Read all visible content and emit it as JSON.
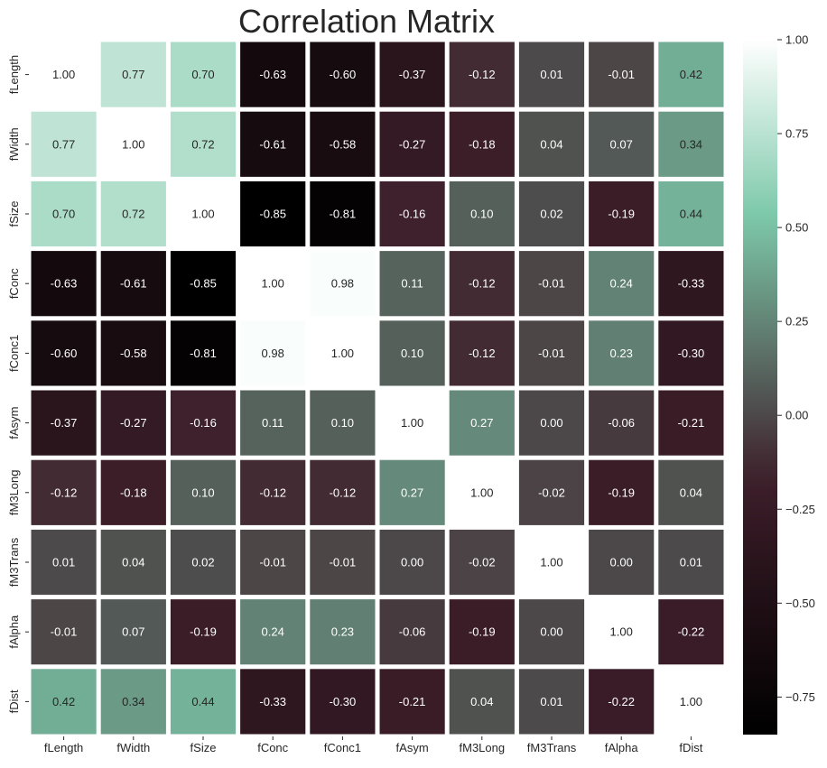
{
  "chart_data": {
    "type": "heatmap",
    "title": "Correlation Matrix",
    "xlabel": "",
    "ylabel": "",
    "labels": [
      "fLength",
      "fWidth",
      "fSize",
      "fConc",
      "fConc1",
      "fAsym",
      "fM3Long",
      "fM3Trans",
      "fAlpha",
      "fDist"
    ],
    "values": [
      [
        1.0,
        0.77,
        0.7,
        -0.63,
        -0.6,
        -0.37,
        -0.12,
        0.01,
        -0.01,
        0.42
      ],
      [
        0.77,
        1.0,
        0.72,
        -0.61,
        -0.58,
        -0.27,
        -0.18,
        0.04,
        0.07,
        0.34
      ],
      [
        0.7,
        0.72,
        1.0,
        -0.85,
        -0.81,
        -0.16,
        0.1,
        0.02,
        -0.19,
        0.44
      ],
      [
        -0.63,
        -0.61,
        -0.85,
        1.0,
        0.98,
        0.11,
        -0.12,
        -0.01,
        0.24,
        -0.33
      ],
      [
        -0.6,
        -0.58,
        -0.81,
        0.98,
        1.0,
        0.1,
        -0.12,
        -0.01,
        0.23,
        -0.3
      ],
      [
        -0.37,
        -0.27,
        -0.16,
        0.11,
        0.1,
        1.0,
        0.27,
        0.0,
        -0.06,
        -0.21
      ],
      [
        -0.12,
        -0.18,
        0.1,
        -0.12,
        -0.12,
        0.27,
        1.0,
        -0.02,
        -0.19,
        0.04
      ],
      [
        0.01,
        0.04,
        0.02,
        -0.01,
        -0.01,
        0.0,
        -0.02,
        1.0,
        0.0,
        0.01
      ],
      [
        -0.01,
        0.07,
        -0.19,
        0.24,
        0.23,
        -0.06,
        -0.19,
        0.0,
        1.0,
        -0.22
      ],
      [
        0.42,
        0.34,
        0.44,
        -0.33,
        -0.3,
        -0.21,
        0.04,
        0.01,
        -0.22,
        1.0
      ]
    ],
    "value_format": "2 decimals",
    "colormap": "bone",
    "vmin": -0.85,
    "vmax": 1.0,
    "colorbar": {
      "ticks": [
        1.0,
        0.75,
        0.5,
        0.25,
        0.0,
        -0.25,
        -0.5,
        -0.75
      ],
      "tick_labels": [
        "1.00",
        "0.75",
        "0.50",
        "0.25",
        "0.00",
        "−0.25",
        "−0.50",
        "−0.75"
      ]
    },
    "grid": false,
    "cell_separator_color": "#ffffff"
  },
  "colors": {
    "background": "#ffffff",
    "text_dark": "#262626",
    "text_light": "#ffffff"
  }
}
